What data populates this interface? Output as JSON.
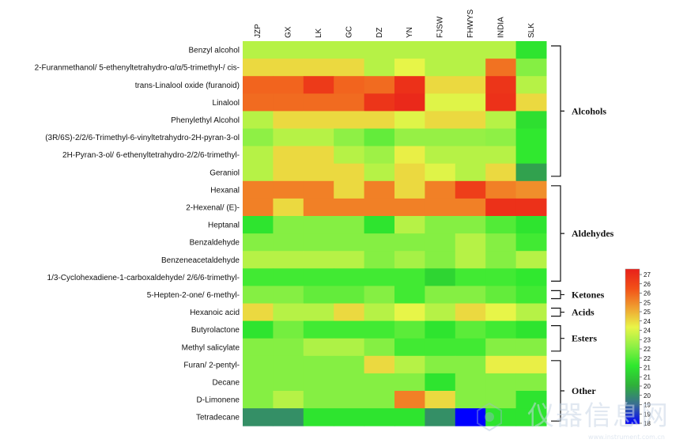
{
  "chart_data": {
    "type": "heatmap",
    "title": "",
    "columns": [
      "JZP",
      "GX",
      "LK",
      "GC",
      "DZ",
      "YN",
      "FJSW",
      "FHWYS",
      "INDIA",
      "SLK"
    ],
    "rows": [
      "Benzyl alcohol",
      "2-Furanmethanol/ 5-ethenyltetrahydro-α/α/5-trimethyl-/ cis-",
      "trans-Linalool oxide (furanoid)",
      "Linalool",
      "Phenylethyl Alcohol",
      "(3R/6S)-2/2/6-Trimethyl-6-vinyltetrahydro-2H-pyran-3-ol",
      "2H-Pyran-3-ol/ 6-ethenyltetrahydro-2/2/6-trimethyl-",
      "Geraniol",
      "Hexanal",
      "2-Hexenal/ (E)-",
      "Heptanal",
      "Benzaldehyde",
      "Benzeneacetaldehyde",
      "1/3-Cyclohexadiene-1-carboxaldehyde/ 2/6/6-trimethyl-",
      "5-Hepten-2-one/ 6-methyl-",
      "Hexanoic acid",
      "Butyrolactone",
      "Methyl salicylate",
      "Furan/ 2-pentyl-",
      "Decane",
      "D-Limonene",
      "Tetradecane"
    ],
    "values": [
      [
        23.0,
        23.0,
        23.0,
        23.0,
        23.0,
        23.0,
        23.0,
        23.0,
        23.0,
        21.3
      ],
      [
        24.0,
        24.0,
        24.0,
        24.0,
        23.0,
        23.6,
        23.0,
        23.0,
        25.4,
        22.4
      ],
      [
        25.6,
        25.6,
        26.4,
        25.6,
        25.5,
        26.6,
        24.0,
        24.0,
        26.5,
        23.0
      ],
      [
        25.5,
        25.5,
        25.5,
        25.5,
        26.5,
        26.8,
        23.5,
        23.5,
        26.6,
        24.0
      ],
      [
        23.0,
        24.0,
        24.0,
        24.0,
        24.0,
        23.5,
        24.0,
        24.0,
        23.0,
        21.2
      ],
      [
        22.5,
        23.0,
        23.0,
        22.5,
        22.0,
        22.6,
        22.6,
        22.6,
        22.5,
        21.4
      ],
      [
        23.0,
        24.0,
        24.0,
        23.0,
        22.7,
        23.7,
        23.0,
        23.0,
        23.0,
        21.4
      ],
      [
        23.0,
        24.0,
        24.0,
        24.0,
        23.0,
        24.0,
        23.5,
        23.0,
        24.0,
        20.0
      ],
      [
        25.2,
        25.2,
        25.2,
        24.0,
        25.2,
        24.0,
        25.2,
        26.3,
        25.2,
        25.0
      ],
      [
        25.2,
        24.0,
        25.2,
        25.2,
        25.2,
        25.2,
        25.2,
        25.2,
        26.6,
        26.6
      ],
      [
        21.3,
        22.4,
        22.4,
        22.4,
        21.3,
        23.0,
        22.4,
        22.4,
        21.8,
        21.3
      ],
      [
        22.4,
        22.4,
        22.4,
        22.4,
        22.4,
        22.4,
        22.4,
        23.0,
        22.4,
        21.6
      ],
      [
        23.0,
        23.0,
        23.0,
        23.0,
        22.4,
        22.8,
        22.4,
        23.0,
        22.4,
        23.0
      ],
      [
        21.6,
        21.6,
        21.6,
        21.6,
        21.6,
        21.6,
        21.0,
        21.6,
        21.6,
        21.4
      ],
      [
        22.4,
        22.4,
        22.0,
        22.0,
        22.4,
        21.6,
        22.4,
        22.4,
        22.0,
        21.6
      ],
      [
        24.0,
        23.0,
        23.0,
        24.0,
        23.0,
        23.6,
        23.0,
        24.0,
        23.6,
        23.0
      ],
      [
        21.3,
        22.2,
        21.6,
        21.6,
        21.6,
        21.9,
        21.3,
        21.9,
        21.6,
        21.3
      ],
      [
        22.4,
        22.4,
        22.9,
        22.9,
        22.4,
        21.6,
        21.6,
        21.6,
        22.4,
        22.4
      ],
      [
        22.4,
        22.4,
        22.4,
        22.4,
        24.0,
        23.0,
        22.4,
        22.4,
        23.7,
        23.7
      ],
      [
        22.4,
        22.4,
        22.4,
        22.4,
        22.4,
        22.4,
        21.3,
        22.4,
        22.4,
        22.4
      ],
      [
        22.4,
        23.0,
        22.4,
        22.4,
        22.4,
        25.2,
        24.0,
        22.4,
        22.4,
        21.3
      ],
      [
        19.7,
        19.7,
        21.3,
        21.3,
        21.3,
        21.3,
        19.7,
        18.0,
        21.3,
        21.3
      ]
    ],
    "groups": [
      {
        "name": "Alcohols",
        "start": 0,
        "end": 7
      },
      {
        "name": "Aldehydes",
        "start": 8,
        "end": 13
      },
      {
        "name": "Ketones",
        "start": 14,
        "end": 14
      },
      {
        "name": "Acids",
        "start": 15,
        "end": 15
      },
      {
        "name": "Esters",
        "start": 16,
        "end": 17
      },
      {
        "name": "Other",
        "start": 18,
        "end": 21
      }
    ],
    "scale": {
      "min": 18,
      "max": 27,
      "tick_labels": [
        "27",
        "26",
        "26",
        "25",
        "25",
        "24",
        "24",
        "23",
        "22",
        "22",
        "21",
        "21",
        "20",
        "20",
        "19",
        "19",
        "18"
      ],
      "colors": [
        "#0000ff",
        "#3a6c94",
        "#2fb03a",
        "#2ee82e",
        "#8ef045",
        "#e9f548",
        "#f0a030",
        "#f25018",
        "#e8201a"
      ]
    }
  },
  "watermark": {
    "text": "仪器信息网",
    "url": "www.instrument.com.cn"
  }
}
